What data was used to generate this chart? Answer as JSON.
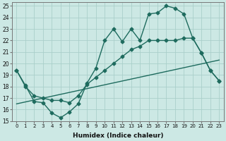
{
  "xlabel": "Humidex (Indice chaleur)",
  "bg_color": "#cce8e4",
  "line_color": "#1e6b5e",
  "grid_color": "#aacfca",
  "xlim": [
    -0.5,
    23.5
  ],
  "ylim": [
    15,
    25.3
  ],
  "yticks": [
    15,
    16,
    17,
    18,
    19,
    20,
    21,
    22,
    23,
    24,
    25
  ],
  "xticks": [
    0,
    1,
    2,
    3,
    4,
    5,
    6,
    7,
    8,
    9,
    10,
    11,
    12,
    13,
    14,
    15,
    16,
    17,
    18,
    19,
    20,
    21,
    22,
    23
  ],
  "line1_x": [
    0,
    1,
    2,
    3,
    4,
    5,
    6,
    7,
    8,
    9,
    10,
    11,
    12,
    13,
    14,
    15,
    16,
    17,
    18,
    19,
    20,
    21,
    22,
    23
  ],
  "line1_y": [
    19.4,
    18.1,
    16.7,
    16.6,
    15.7,
    15.3,
    15.8,
    16.5,
    18.3,
    19.6,
    22.0,
    23.0,
    21.9,
    23.0,
    22.0,
    24.3,
    24.4,
    25.0,
    24.8,
    24.3,
    22.2,
    20.9,
    19.4,
    18.5
  ],
  "line2_x": [
    0,
    1,
    2,
    3,
    4,
    5,
    6,
    7,
    8,
    9,
    10,
    11,
    12,
    13,
    14,
    15,
    16,
    17,
    18,
    19,
    20,
    21,
    22,
    23
  ],
  "line2_y": [
    19.4,
    18.0,
    17.2,
    17.0,
    16.8,
    16.8,
    16.6,
    17.2,
    18.2,
    18.8,
    19.4,
    20.0,
    20.6,
    21.2,
    21.5,
    22.0,
    22.0,
    22.0,
    22.0,
    22.2,
    22.2,
    20.9,
    19.4,
    18.5
  ],
  "line3_x": [
    0,
    23
  ],
  "line3_y": [
    16.5,
    20.3
  ],
  "marker_size": 2.5,
  "line_width": 1.0
}
